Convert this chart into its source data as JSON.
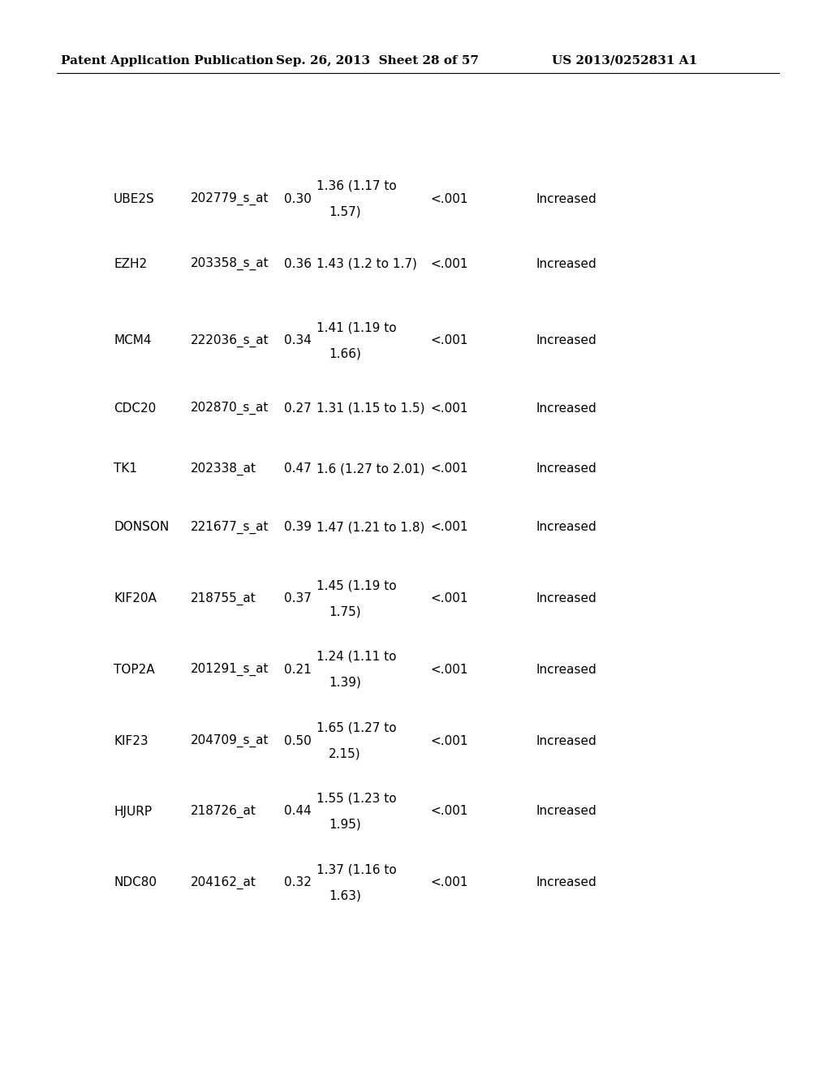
{
  "header_left": "Patent Application Publication",
  "header_mid": "Sep. 26, 2013  Sheet 28 of 57",
  "header_right": "US 2013/0252831 A1",
  "rows": [
    {
      "gene": "UBE2S",
      "probe": "202779_s_at  0.30",
      "ci_line1": "1.36 (1.17 to",
      "ci_line2": "1.57)",
      "pval": "<.001",
      "direction": "Increased",
      "two_line": true
    },
    {
      "gene": "EZH2",
      "probe": "203358_s_at  0.36",
      "ci_line1": "1.43 (1.2 to 1.7)  <.001",
      "ci_line2": null,
      "pval": "",
      "direction": "Increased",
      "two_line": false
    },
    {
      "gene": "MCM4",
      "probe": "222036_s_at  0.34",
      "ci_line1": "1.41 (1.19 to",
      "ci_line2": "1.66)",
      "pval": "<.001",
      "direction": "Increased",
      "two_line": true
    },
    {
      "gene": "CDC20",
      "probe": "202870_s_at  0.27",
      "ci_line1": "1.31 (1.15 to 1.5)  <.001",
      "ci_line2": null,
      "pval": "",
      "direction": "Increased",
      "two_line": false
    },
    {
      "gene": "TK1",
      "probe": "202338_at    0.47",
      "ci_line1": "1.6 (1.27 to 2.01)  <.001",
      "ci_line2": null,
      "pval": "",
      "direction": "Increased",
      "two_line": false
    },
    {
      "gene": "DONSON",
      "probe": "221677_s_at  0.39",
      "ci_line1": "1.47 (1.21 to 1.8)  <.001",
      "ci_line2": null,
      "pval": "",
      "direction": "Increased",
      "two_line": false
    },
    {
      "gene": "KIF20A",
      "probe": "218755_at    0.37",
      "ci_line1": "1.45 (1.19 to",
      "ci_line2": "1.75)",
      "pval": "<.001",
      "direction": "Increased",
      "two_line": true
    },
    {
      "gene": "TOP2A",
      "probe": "201291_s_at  0.21",
      "ci_line1": "1.24 (1.11 to",
      "ci_line2": "1.39)",
      "pval": "<.001",
      "direction": "Increased",
      "two_line": true
    },
    {
      "gene": "KIF23",
      "probe": "204709_s_at  0.50",
      "ci_line1": "1.65 (1.27 to",
      "ci_line2": "2.15)",
      "pval": "<.001",
      "direction": "Increased",
      "two_line": true
    },
    {
      "gene": "HJURP",
      "probe": "218726_at    0.44",
      "ci_line1": "1.55 (1.23 to",
      "ci_line2": "1.95)",
      "pval": "<.001",
      "direction": "Increased",
      "two_line": true
    },
    {
      "gene": "NDC80",
      "probe": "204162_at    0.32",
      "ci_line1": "1.37 (1.16 to",
      "ci_line2": "1.63)",
      "pval": "<.001",
      "direction": "Increased",
      "two_line": true
    }
  ],
  "bg_color": "#ffffff",
  "text_color": "#000000"
}
